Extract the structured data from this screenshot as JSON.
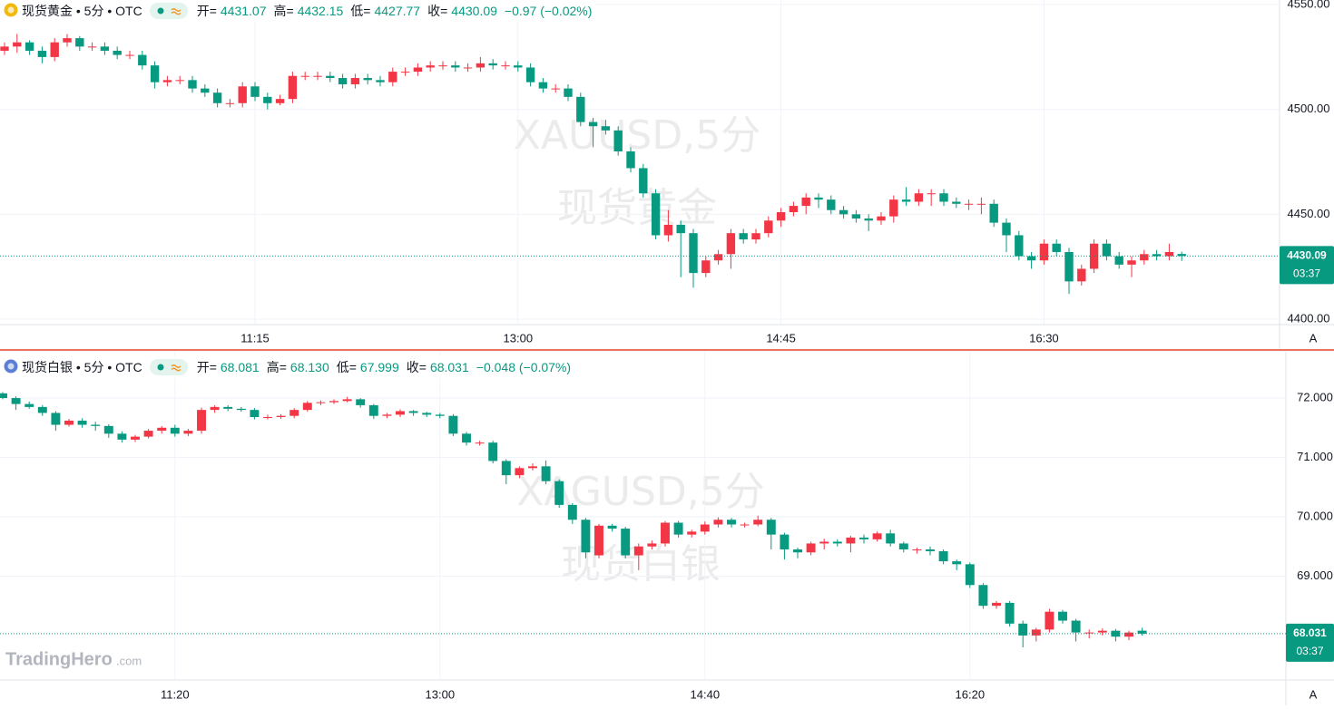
{
  "chart_data": [
    {
      "type": "candlestick",
      "symbol": "现货黄金 • 5分 • OTC",
      "ohlc_labels": [
        "开=",
        "高=",
        "低=",
        "收="
      ],
      "ohlc_values": [
        "4431.07",
        "4432.15",
        "4427.77",
        "4430.09"
      ],
      "change": "−0.97 (−0.02%)",
      "watermark": [
        "XAUUSD,5分",
        "现货黄金"
      ],
      "up_color": "#f23645",
      "down_color": "#089981",
      "grid": true,
      "ylim": [
        4397.4,
        4552.2
      ],
      "yticks": [
        {
          "value": 4400,
          "label": "4400.00"
        },
        {
          "value": 4450,
          "label": "4450.00"
        },
        {
          "value": 4500,
          "label": "4500.00"
        },
        {
          "value": 4550,
          "label": "4550.00"
        }
      ],
      "price_label": {
        "value": 4430.09,
        "label": "4430.09"
      },
      "countdown": "03:37",
      "scale_button": "A",
      "categories": [
        null,
        null,
        null,
        null,
        null,
        null,
        null,
        null,
        null,
        null,
        null,
        null,
        null,
        null,
        null,
        null,
        null,
        null,
        null,
        null,
        "11:15",
        null,
        null,
        null,
        null,
        null,
        null,
        null,
        null,
        null,
        null,
        null,
        null,
        null,
        null,
        null,
        null,
        null,
        null,
        null,
        null,
        "13:00",
        null,
        null,
        null,
        null,
        null,
        null,
        null,
        null,
        null,
        null,
        null,
        null,
        null,
        null,
        null,
        null,
        null,
        null,
        null,
        null,
        "14:45",
        null,
        null,
        null,
        null,
        null,
        null,
        null,
        null,
        null,
        null,
        null,
        null,
        null,
        null,
        null,
        null,
        null,
        null,
        null,
        null,
        "16:30",
        null,
        null,
        null,
        null,
        null,
        null,
        null,
        null,
        null,
        null,
        null
      ],
      "open": [
        4528,
        4530,
        4532,
        4528,
        4525,
        4532,
        4534,
        4530,
        4530,
        4528,
        4526,
        4526,
        4521,
        4513,
        4514,
        4514,
        4510,
        4508,
        4503,
        4503,
        4511,
        4506,
        4503,
        4505,
        4516,
        4516,
        4516,
        4515,
        4512,
        4515,
        4514,
        4513,
        4518,
        4518,
        4520,
        4521,
        4521,
        4520,
        4520,
        4522,
        4521,
        4521,
        4520,
        4513,
        4510,
        4510,
        4506,
        4494,
        4492,
        4490,
        4480,
        4472,
        4460,
        4440,
        4445,
        4441,
        4422,
        4428,
        4431,
        4441,
        4438,
        4441,
        4447,
        4451,
        4454,
        4458,
        4457,
        4452,
        4450,
        4448,
        4447,
        4449,
        4457,
        4456,
        4460,
        4460,
        4456,
        4455,
        4455,
        4455,
        4446,
        4440,
        4430,
        4428,
        4436,
        4432,
        4418,
        4424,
        4436,
        4430,
        4426,
        4428,
        4431,
        4430,
        4431.07
      ],
      "high": [
        4532,
        4536,
        4533,
        4530,
        4534,
        4536,
        4535,
        4532,
        4532,
        4530,
        4528,
        4528,
        4523,
        4516,
        4516,
        4516,
        4512,
        4510,
        4505,
        4513,
        4513,
        4508,
        4507,
        4518,
        4518,
        4518,
        4518,
        4517,
        4517,
        4517,
        4516,
        4520,
        4520,
        4522,
        4523,
        4523,
        4523,
        4522,
        4525,
        4524,
        4523,
        4523,
        4522,
        4515,
        4512,
        4512,
        4508,
        4496,
        4495,
        4492,
        4482,
        4474,
        4462,
        4452,
        4447,
        4443,
        4430,
        4433,
        4443,
        4443,
        4443,
        4449,
        4453,
        4456,
        4460,
        4460,
        4459,
        4454,
        4452,
        4450,
        4451,
        4459,
        4463,
        4462,
        4462,
        4462,
        4458,
        4457,
        4458,
        4457,
        4448,
        4442,
        4432,
        4438,
        4438,
        4434,
        4426,
        4438,
        4438,
        4432,
        4430,
        4433,
        4433,
        4436,
        4432.15
      ],
      "low": [
        4526,
        4527,
        4526,
        4522,
        4523,
        4530,
        4528,
        4528,
        4526,
        4524,
        4524,
        4519,
        4510,
        4511,
        4512,
        4508,
        4506,
        4501,
        4501,
        4501,
        4504,
        4500,
        4502,
        4503,
        4514,
        4514,
        4513,
        4510,
        4510,
        4512,
        4511,
        4511,
        4516,
        4516,
        4518,
        4519,
        4518,
        4518,
        4518,
        4519,
        4519,
        4518,
        4511,
        4508,
        4508,
        4504,
        4492,
        4482,
        4488,
        4478,
        4470,
        4458,
        4438,
        4437,
        4420,
        4415,
        4420,
        4426,
        4424,
        4436,
        4436,
        4439,
        4444,
        4449,
        4450,
        4453,
        4450,
        4448,
        4446,
        4442,
        4445,
        4446,
        4454,
        4454,
        4454,
        4454,
        4453,
        4452,
        4450,
        4444,
        4432,
        4428,
        4424,
        4426,
        4430,
        4412,
        4416,
        4422,
        4428,
        4424,
        4420,
        4426,
        4428,
        4428,
        4427.77
      ],
      "close": [
        4530,
        4532,
        4528,
        4525,
        4532,
        4534,
        4530,
        4530,
        4528,
        4526,
        4526,
        4521,
        4513,
        4514,
        4514,
        4510,
        4508,
        4503,
        4503,
        4511,
        4506,
        4503,
        4505,
        4516,
        4516,
        4516,
        4515,
        4512,
        4515,
        4514,
        4513,
        4518,
        4518,
        4520,
        4521,
        4521,
        4520,
        4520,
        4522,
        4521,
        4521,
        4520,
        4513,
        4510,
        4510,
        4506,
        4494,
        4492,
        4490,
        4480,
        4472,
        4460,
        4440,
        4445,
        4441,
        4422,
        4428,
        4431,
        4441,
        4438,
        4441,
        4447,
        4451,
        4454,
        4458,
        4457,
        4452,
        4450,
        4448,
        4447,
        4449,
        4457,
        4456,
        4460,
        4460,
        4456,
        4455,
        4455,
        4455,
        4446,
        4440,
        4430,
        4428,
        4436,
        4432,
        4418,
        4424,
        4436,
        4430,
        4426,
        4428,
        4431,
        4430,
        4432,
        4430.09
      ]
    },
    {
      "type": "candlestick",
      "symbol": "现货白银 • 5分 • OTC",
      "ohlc_labels": [
        "开=",
        "高=",
        "低=",
        "收="
      ],
      "ohlc_values": [
        "68.081",
        "68.130",
        "67.999",
        "68.031"
      ],
      "change": "−0.048 (−0.07%)",
      "watermark": [
        "XAGUSD,5分",
        "现货白银"
      ],
      "up_color": "#f23645",
      "down_color": "#089981",
      "grid": true,
      "ylim": [
        67.25,
        72.78
      ],
      "yticks": [
        {
          "value": 69,
          "label": "69.000"
        },
        {
          "value": 70,
          "label": "70.000"
        },
        {
          "value": 71,
          "label": "71.000"
        },
        {
          "value": 72,
          "label": "72.000"
        }
      ],
      "price_label": {
        "value": 68.031,
        "label": "68.031"
      },
      "countdown": "03:37",
      "scale_button": "A",
      "categories": [
        null,
        null,
        null,
        null,
        null,
        null,
        null,
        null,
        null,
        null,
        null,
        null,
        null,
        "11:20",
        null,
        null,
        null,
        null,
        null,
        null,
        null,
        null,
        null,
        null,
        null,
        null,
        null,
        null,
        null,
        null,
        null,
        null,
        null,
        "13:00",
        null,
        null,
        null,
        null,
        null,
        null,
        null,
        null,
        null,
        null,
        null,
        null,
        null,
        null,
        null,
        null,
        null,
        null,
        null,
        "14:40",
        null,
        null,
        null,
        null,
        null,
        null,
        null,
        null,
        null,
        null,
        null,
        null,
        null,
        null,
        null,
        null,
        null,
        null,
        null,
        "16:20",
        null,
        null,
        null,
        null,
        null,
        null,
        null,
        null,
        null,
        null,
        null,
        null,
        null
      ],
      "open": [
        72.08,
        72.0,
        71.9,
        71.85,
        71.75,
        71.55,
        71.62,
        71.55,
        71.53,
        71.4,
        71.3,
        71.35,
        71.45,
        71.5,
        71.4,
        71.45,
        71.8,
        71.85,
        71.82,
        71.8,
        71.68,
        71.68,
        71.7,
        71.8,
        71.92,
        71.93,
        71.95,
        71.98,
        71.88,
        71.7,
        71.72,
        71.78,
        71.75,
        71.72,
        71.7,
        71.4,
        71.25,
        71.25,
        70.94,
        70.7,
        70.82,
        70.85,
        70.6,
        70.2,
        69.95,
        69.35,
        69.85,
        69.8,
        69.35,
        69.5,
        69.55,
        69.9,
        69.7,
        69.75,
        69.87,
        69.95,
        69.87,
        69.87,
        69.95,
        69.7,
        69.45,
        69.4,
        69.55,
        69.58,
        69.55,
        69.65,
        69.62,
        69.72,
        69.55,
        69.45,
        69.45,
        69.42,
        69.25,
        69.2,
        68.85,
        68.5,
        68.55,
        68.2,
        68.0,
        68.1,
        68.4,
        68.25,
        68.05,
        68.05,
        68.08,
        67.98,
        68.081
      ],
      "high": [
        72.1,
        72.03,
        71.94,
        71.88,
        71.78,
        71.65,
        71.66,
        71.6,
        71.56,
        71.44,
        71.38,
        71.48,
        71.53,
        71.55,
        71.48,
        71.84,
        71.88,
        71.88,
        71.85,
        71.83,
        71.72,
        71.73,
        71.83,
        71.95,
        71.96,
        71.98,
        72.02,
        72.0,
        71.9,
        71.75,
        71.81,
        71.8,
        71.77,
        71.75,
        71.73,
        71.43,
        71.28,
        71.28,
        70.97,
        70.85,
        70.9,
        70.95,
        70.63,
        70.23,
        69.98,
        69.88,
        69.88,
        69.83,
        69.55,
        69.6,
        69.93,
        69.93,
        69.78,
        69.92,
        69.99,
        69.98,
        69.9,
        70.02,
        69.98,
        69.73,
        69.48,
        69.58,
        69.63,
        69.62,
        69.68,
        69.7,
        69.75,
        69.78,
        69.58,
        69.48,
        69.5,
        69.45,
        69.28,
        69.23,
        68.88,
        68.58,
        68.58,
        68.25,
        68.13,
        68.45,
        68.43,
        68.28,
        68.1,
        68.12,
        68.11,
        68.08,
        68.13
      ],
      "low": [
        71.98,
        71.8,
        71.82,
        71.7,
        71.45,
        71.52,
        71.5,
        71.45,
        71.33,
        71.25,
        71.26,
        71.32,
        71.4,
        71.35,
        71.36,
        71.4,
        71.75,
        71.78,
        71.77,
        71.64,
        71.64,
        71.65,
        71.66,
        71.77,
        71.88,
        71.9,
        71.93,
        71.84,
        71.65,
        71.66,
        71.68,
        71.7,
        71.68,
        71.66,
        71.36,
        71.2,
        71.2,
        70.9,
        70.55,
        70.65,
        70.78,
        70.55,
        70.15,
        69.88,
        69.3,
        69.3,
        69.75,
        69.3,
        69.1,
        69.45,
        69.5,
        69.65,
        69.65,
        69.7,
        69.82,
        69.82,
        69.82,
        69.84,
        69.45,
        69.28,
        69.3,
        69.35,
        69.45,
        69.5,
        69.4,
        69.55,
        69.58,
        69.5,
        69.4,
        69.38,
        69.35,
        69.2,
        69.1,
        68.8,
        68.45,
        68.45,
        68.15,
        67.8,
        67.9,
        68.05,
        68.2,
        67.9,
        67.95,
        68.0,
        67.9,
        67.92,
        67.999
      ],
      "close": [
        72.0,
        71.9,
        71.85,
        71.75,
        71.55,
        71.62,
        71.55,
        71.53,
        71.4,
        71.3,
        71.35,
        71.45,
        71.5,
        71.4,
        71.45,
        71.8,
        71.85,
        71.82,
        71.8,
        71.68,
        71.68,
        71.7,
        71.8,
        71.92,
        71.93,
        71.95,
        71.98,
        71.88,
        71.7,
        71.72,
        71.78,
        71.75,
        71.72,
        71.7,
        71.4,
        71.25,
        71.25,
        70.94,
        70.7,
        70.82,
        70.85,
        70.6,
        70.2,
        69.95,
        69.4,
        69.85,
        69.8,
        69.35,
        69.5,
        69.55,
        69.9,
        69.7,
        69.75,
        69.87,
        69.95,
        69.87,
        69.87,
        69.95,
        69.7,
        69.45,
        69.4,
        69.55,
        69.58,
        69.55,
        69.65,
        69.62,
        69.72,
        69.55,
        69.45,
        69.45,
        69.42,
        69.25,
        69.2,
        68.85,
        68.5,
        68.55,
        68.2,
        68.0,
        68.1,
        68.4,
        68.25,
        68.05,
        68.05,
        68.08,
        67.98,
        68.05,
        68.031
      ]
    }
  ],
  "logo": {
    "name": "TradingHero",
    "suffix": ".com"
  }
}
